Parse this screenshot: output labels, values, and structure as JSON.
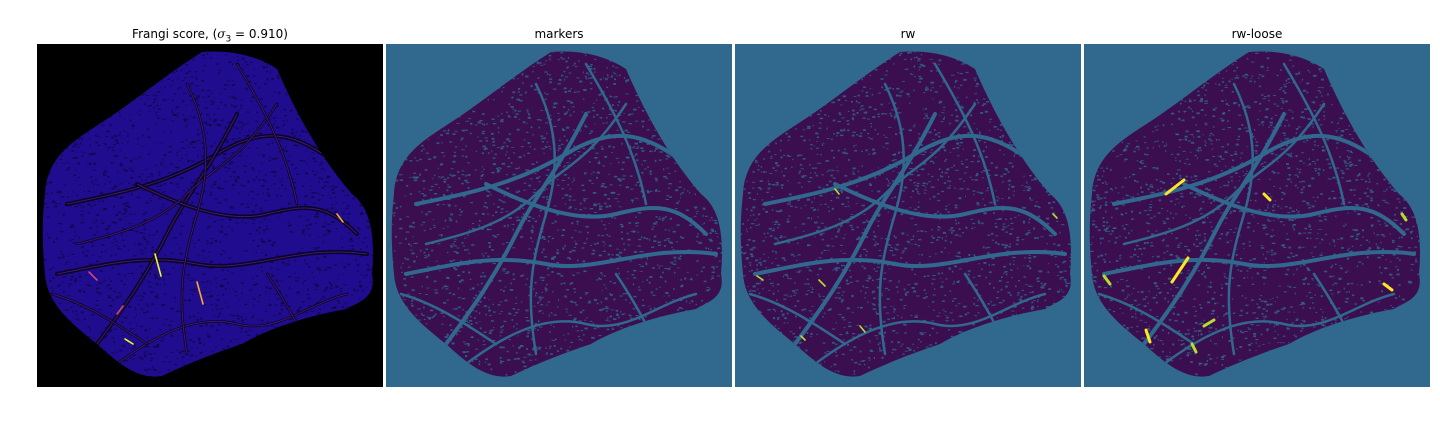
{
  "panels": [
    {
      "title": "Frangi score, (",
      "title_math": "σ",
      "title_sub": "3",
      "title_rest": " = 0.910)",
      "background": "#000000",
      "tissue_color": "#1f0c8f",
      "vessel_color": "#0a0420",
      "highlight_colors": [
        "#cc4778",
        "#f0f921",
        "#fca636"
      ]
    },
    {
      "title": "markers",
      "background": "#31688e",
      "tissue_color": "#3b0f4f",
      "vessel_color": "#31688e"
    },
    {
      "title": "rw",
      "background": "#31688e",
      "tissue_color": "#3b0f4f",
      "vessel_color": "#31688e",
      "highlight_colors": [
        "#b5de2b"
      ]
    },
    {
      "title": "rw-loose",
      "background": "#31688e",
      "tissue_color": "#3b0f4f",
      "vessel_color": "#31688e",
      "highlight_colors": [
        "#fde725",
        "#b5de2b"
      ]
    }
  ]
}
